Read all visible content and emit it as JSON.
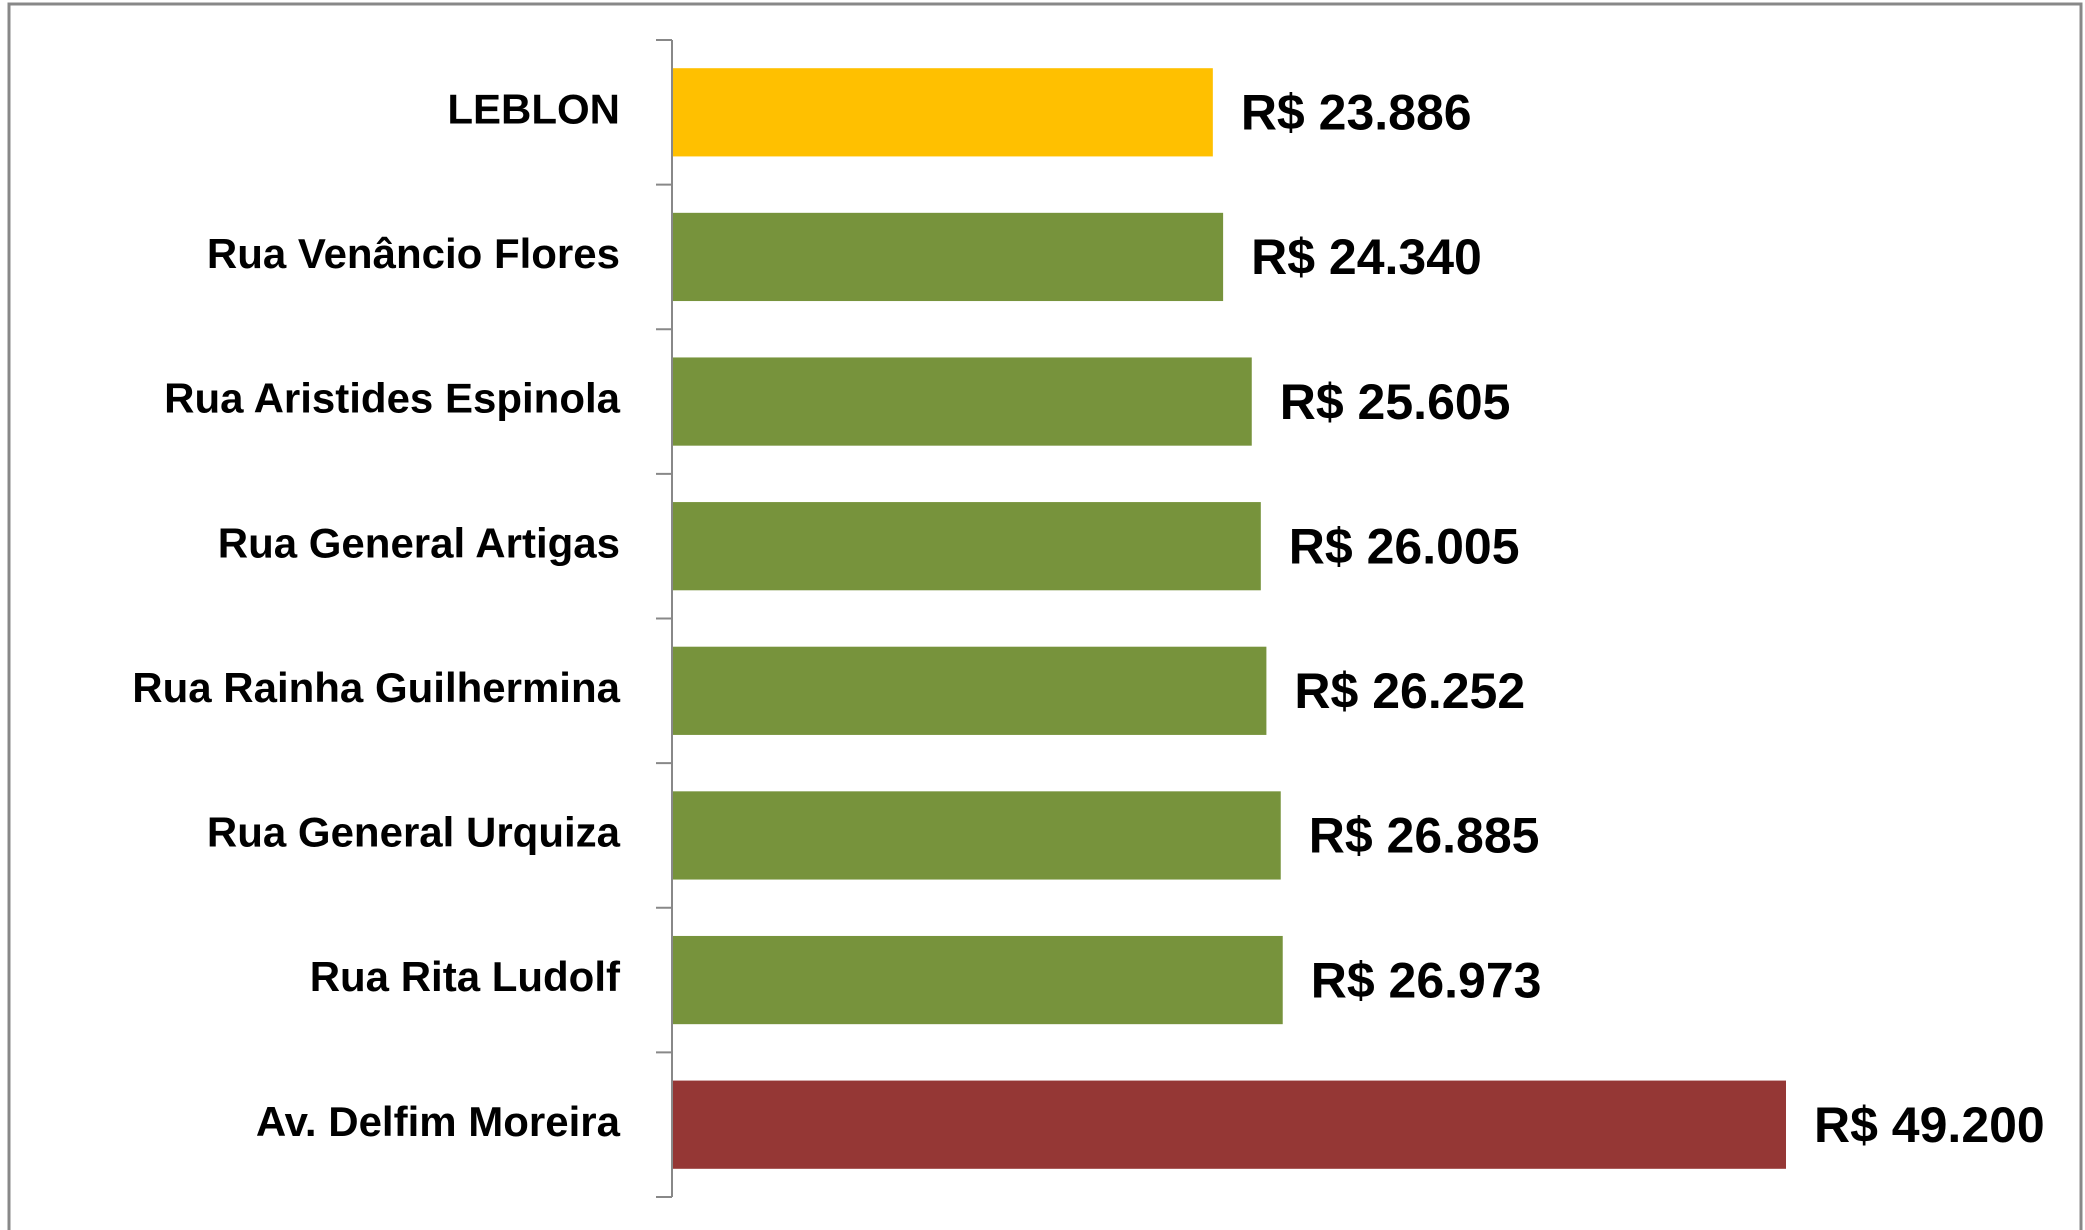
{
  "chart_data": {
    "type": "bar",
    "orientation": "horizontal",
    "categories": [
      "LEBLON",
      "Rua Venâncio Flores",
      "Rua Aristides Espinola",
      "Rua General Artigas",
      "Rua Rainha Guilhermina",
      "Rua General Urquiza",
      "Rua Rita Ludolf",
      "Av. Delfim Moreira"
    ],
    "values": [
      23886,
      24340,
      25605,
      26005,
      26252,
      26885,
      26973,
      49200
    ],
    "value_labels": [
      "R$ 23.886",
      "R$ 24.340",
      "R$ 25.605",
      "R$ 26.005",
      "R$ 26.252",
      "R$ 26.885",
      "R$ 26.973",
      "R$ 49.200"
    ],
    "colors": [
      "#ffc000",
      "#77933c",
      "#77933c",
      "#77933c",
      "#77933c",
      "#77933c",
      "#77933c",
      "#953735"
    ]
  }
}
